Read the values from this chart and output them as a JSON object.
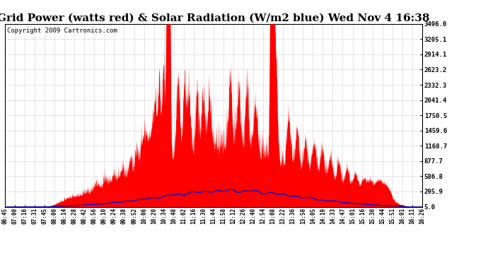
{
  "title": "Grid Power (watts red) & Solar Radiation (W/m2 blue) Wed Nov 4 16:38",
  "copyright": "Copyright 2009 Cartronics.com",
  "y_ticks": [
    5.0,
    295.9,
    586.8,
    877.7,
    1168.7,
    1459.6,
    1750.5,
    2041.4,
    2332.3,
    2623.2,
    2914.1,
    3205.1,
    3496.0
  ],
  "y_min": 5.0,
  "y_max": 3496.0,
  "x_labels": [
    "06:45",
    "07:00",
    "07:16",
    "07:31",
    "07:45",
    "08:00",
    "08:14",
    "08:28",
    "08:42",
    "08:56",
    "09:10",
    "09:24",
    "09:38",
    "09:52",
    "10:06",
    "10:20",
    "10:34",
    "10:48",
    "11:02",
    "11:16",
    "11:30",
    "11:44",
    "11:58",
    "12:12",
    "12:26",
    "12:40",
    "12:54",
    "13:08",
    "13:22",
    "13:36",
    "13:50",
    "14:05",
    "14:19",
    "14:33",
    "14:47",
    "15:01",
    "15:16",
    "15:30",
    "15:44",
    "15:51",
    "16:01",
    "16:11",
    "16:26"
  ],
  "bg_color": "#ffffff",
  "grid_color": "#bbbbbb",
  "red_color": "#ff0000",
  "blue_color": "#0000cc",
  "title_fontsize": 11,
  "copyright_fontsize": 6.5
}
